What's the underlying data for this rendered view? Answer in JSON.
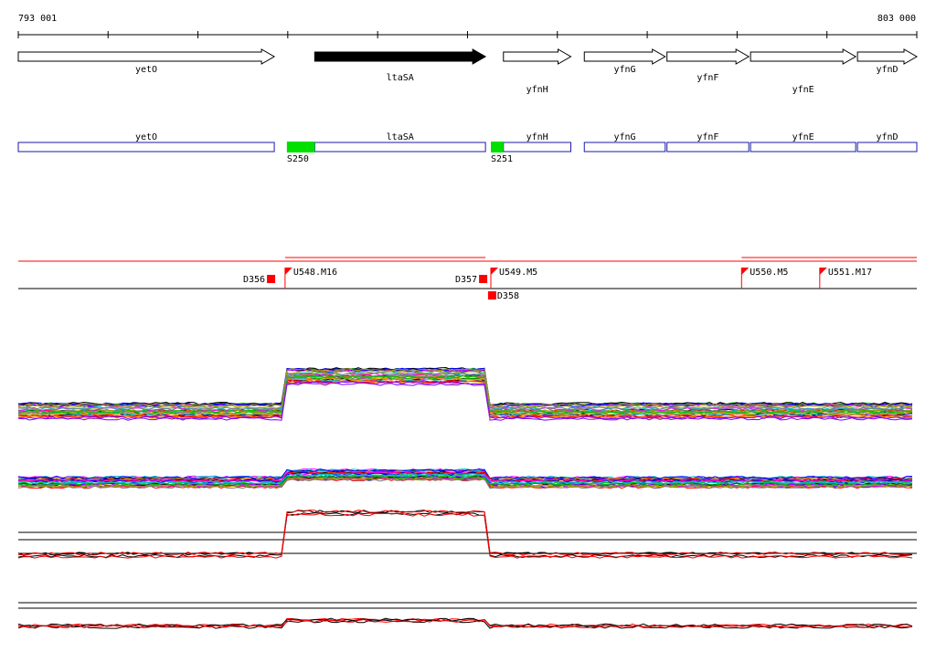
{
  "ruler": {
    "start_label": "793 001",
    "end_label": "803 000",
    "start_pos": 793001,
    "end_pos": 803000
  },
  "genes": [
    {
      "name": "yetO",
      "start": 793001,
      "end": 795850,
      "strand": "+",
      "filled": false,
      "label_row": 1
    },
    {
      "name": "ltaSA",
      "start": 796300,
      "end": 798200,
      "strand": "+",
      "filled": true,
      "label_row": 2
    },
    {
      "name": "yfnH",
      "start": 798400,
      "end": 799150,
      "strand": "+",
      "filled": false,
      "label_row": 3
    },
    {
      "name": "yfnG",
      "start": 799300,
      "end": 800200,
      "strand": "+",
      "filled": false,
      "label_row": 1
    },
    {
      "name": "yfnF",
      "start": 800220,
      "end": 801130,
      "strand": "+",
      "filled": false,
      "label_row": 2
    },
    {
      "name": "yfnE",
      "start": 801150,
      "end": 802320,
      "strand": "+",
      "filled": false,
      "label_row": 3
    },
    {
      "name": "yfnD",
      "start": 802340,
      "end": 803000,
      "strand": "+",
      "filled": false,
      "label_row": 1
    }
  ],
  "segments": {
    "boxes": [
      {
        "name": "yetO",
        "start": 793001,
        "end": 795850
      },
      {
        "name": "ltaSA",
        "start": 796300,
        "end": 798200
      },
      {
        "name": "yfnH",
        "start": 798400,
        "end": 799150
      },
      {
        "name": "yfnG",
        "start": 799300,
        "end": 800200
      },
      {
        "name": "yfnF",
        "start": 800220,
        "end": 801130
      },
      {
        "name": "yfnE",
        "start": 801150,
        "end": 802320
      },
      {
        "name": "yfnD",
        "start": 802340,
        "end": 803000
      }
    ],
    "sites": [
      {
        "label": "S250",
        "start": 795990,
        "end": 796300
      },
      {
        "label": "S251",
        "start": 798260,
        "end": 798400
      }
    ],
    "box_color": "#1a1aa8",
    "site_color": "#00e000"
  },
  "features": {
    "upstream": [
      {
        "label": "U548.M16",
        "pos": 795970
      },
      {
        "label": "U549.M5",
        "pos": 798260
      },
      {
        "label": "U550.M5",
        "pos": 801050
      },
      {
        "label": "U551.M17",
        "pos": 801920
      }
    ],
    "downstream": [
      {
        "label": "D356",
        "pos": 795860,
        "row": 1
      },
      {
        "label": "D357",
        "pos": 798220,
        "row": 1
      },
      {
        "label": "D358",
        "pos": 798320,
        "row": 2
      }
    ],
    "flag_color": "#ff0000"
  },
  "tracks": {
    "palette": [
      "#000000",
      "#ff0000",
      "#00c000",
      "#0000ff",
      "#ff00ff",
      "#00c0c0",
      "#ffa000",
      "#8000ff",
      "#808080",
      "#a0a000"
    ],
    "panel_count": 4
  }
}
